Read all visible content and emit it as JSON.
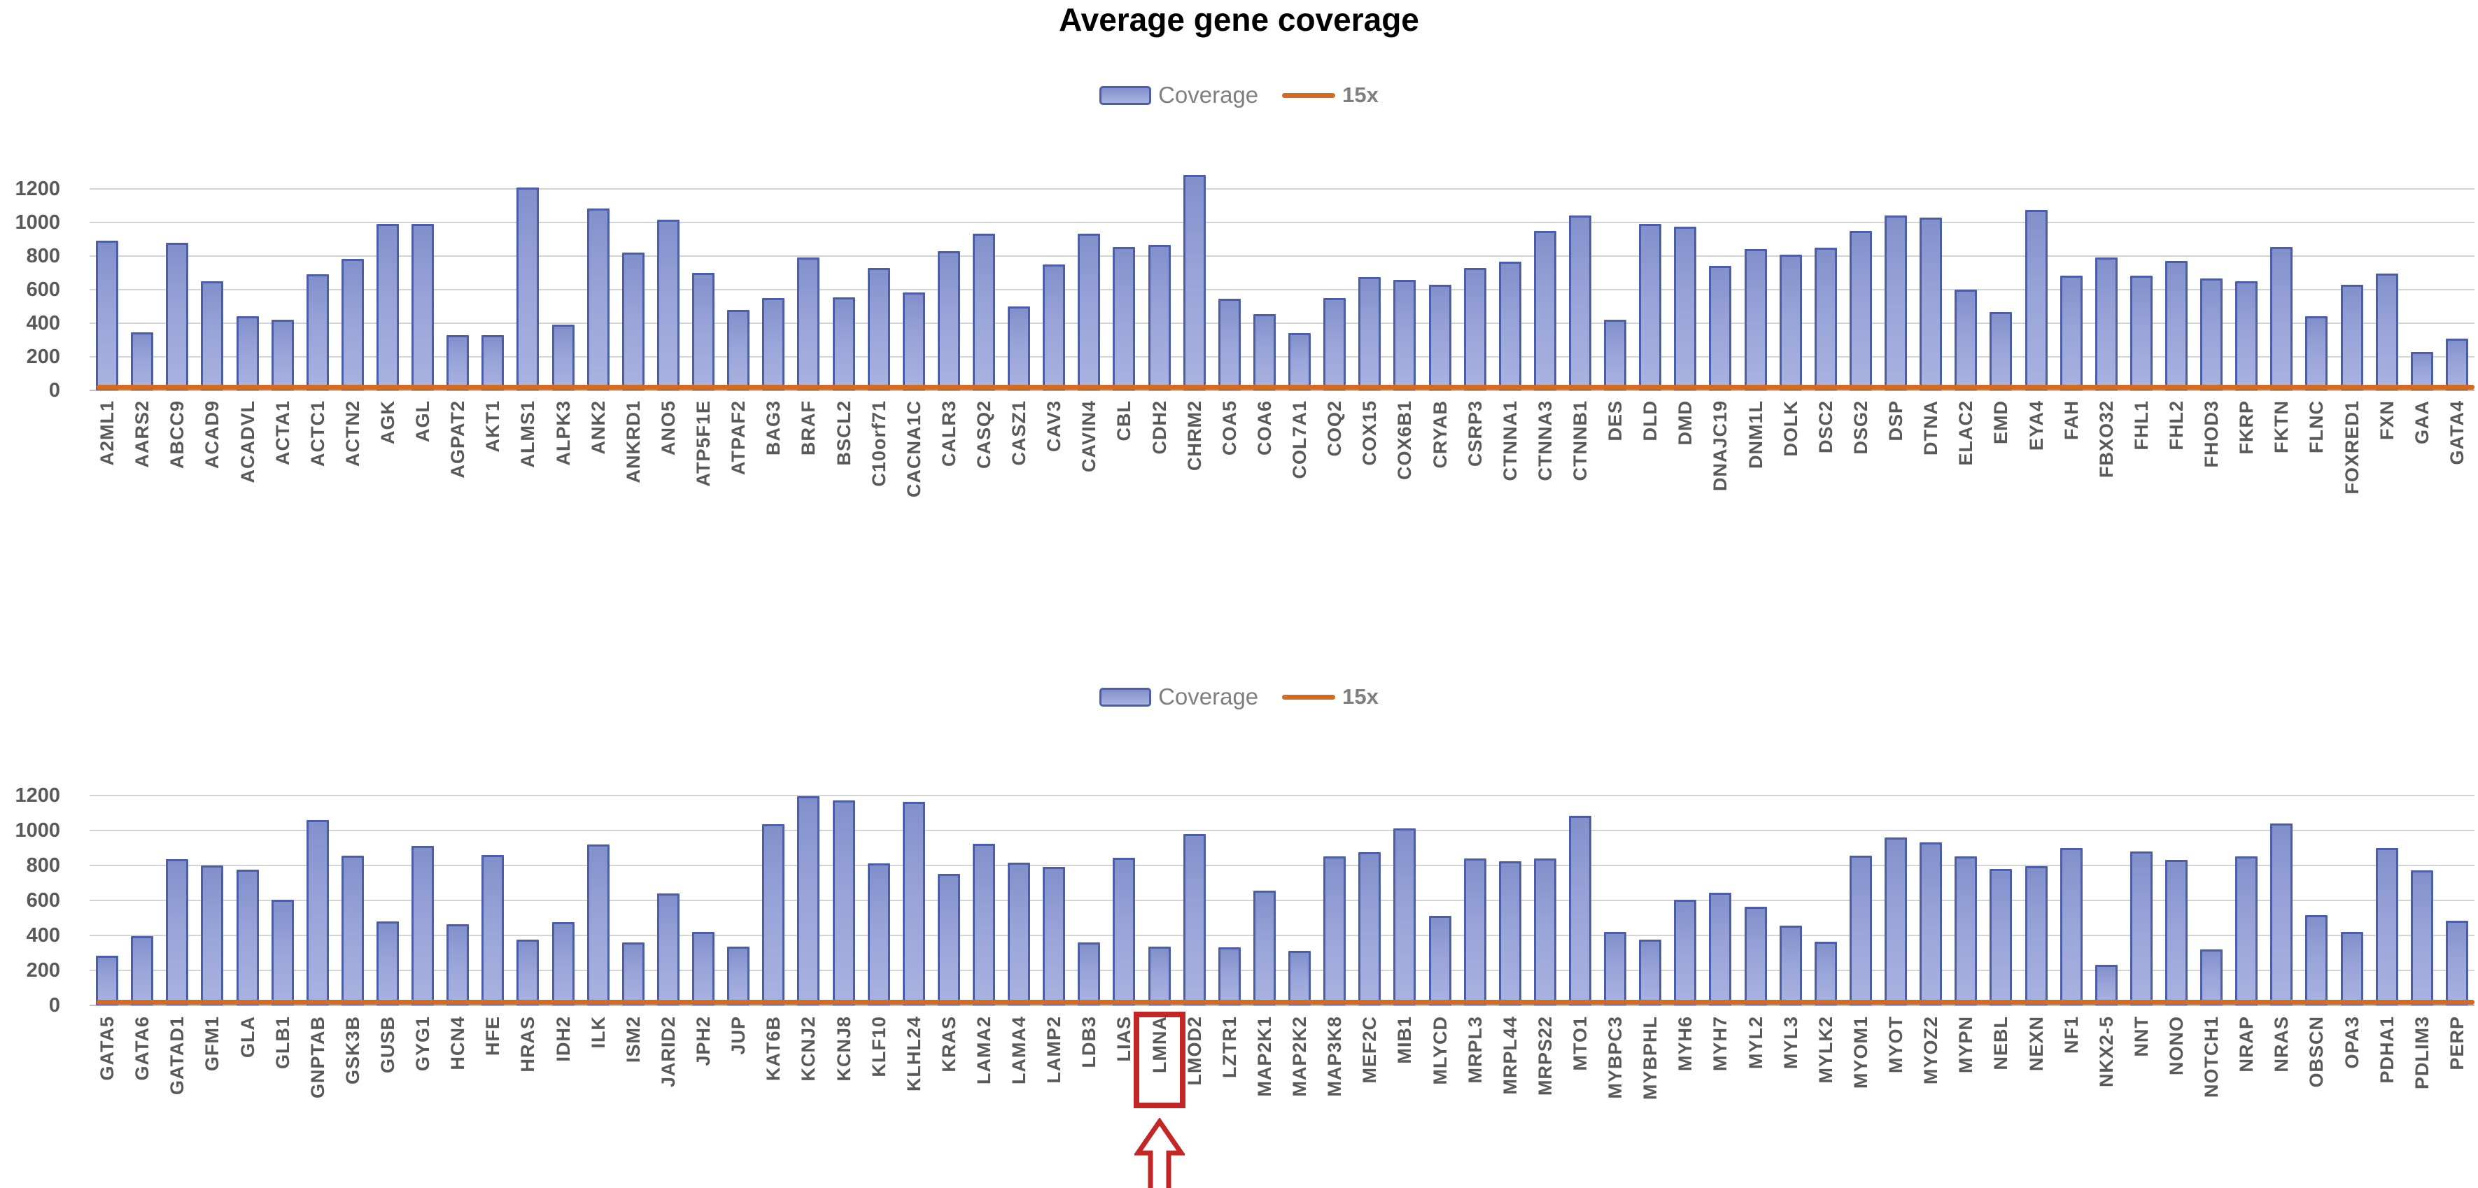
{
  "title": "Average gene coverage",
  "legend": {
    "coverage_label": "Coverage",
    "threshold_label": "15x"
  },
  "colors": {
    "bar_border": "#4C5EA8",
    "bar_fill_top": "#8290CB",
    "bar_fill_mid": "#98A3D8",
    "bar_fill_bottom": "#A9B3E1",
    "threshold": "#D26B24",
    "gridline": "#D4D4D4",
    "axis_text": "#595959",
    "legend_text": "#7F7F7F",
    "highlight": "#C32626",
    "title": "#000000",
    "background": "#FFFFFF"
  },
  "highlight": {
    "gene": "LMNA",
    "marker": "red box around x-axis label with red upward arrow below"
  },
  "chart_data": [
    {
      "type": "bar",
      "title": "Average gene coverage",
      "legend_entries": [
        "Coverage",
        "15x"
      ],
      "legend_position": "top-center",
      "grid": true,
      "ylim": [
        0,
        1200
      ],
      "y_ticks": [
        0,
        200,
        400,
        600,
        800,
        1000,
        1200
      ],
      "threshold_line": {
        "name": "15x",
        "value": 15
      },
      "categories": [
        "A2ML1",
        "AARS2",
        "ABCC9",
        "ACAD9",
        "ACADVL",
        "ACTA1",
        "ACTC1",
        "ACTN2",
        "AGK",
        "AGL",
        "AGPAT2",
        "AKT1",
        "ALMS1",
        "ALPK3",
        "ANK2",
        "ANKRD1",
        "ANO5",
        "ATP5F1E",
        "ATPAF2",
        "BAG3",
        "BRAF",
        "BSCL2",
        "C10orf71",
        "CACNA1C",
        "CALR3",
        "CASQ2",
        "CASZ1",
        "CAV3",
        "CAVIN4",
        "CBL",
        "CDH2",
        "CHRM2",
        "COA5",
        "COA6",
        "COL7A1",
        "COQ2",
        "COX15",
        "COX6B1",
        "CRYAB",
        "CSRP3",
        "CTNNA1",
        "CTNNA3",
        "CTNNB1",
        "DES",
        "DLD",
        "DMD",
        "DNAJC19",
        "DNM1L",
        "DOLK",
        "DSC2",
        "DSG2",
        "DSP",
        "DTNA",
        "ELAC2",
        "EMD",
        "EYA4",
        "FAH",
        "FBXO32",
        "FHL1",
        "FHL2",
        "FHOD3",
        "FKRP",
        "FKTN",
        "FLNC",
        "FOXRED1",
        "FXN",
        "GAA",
        "GATA4"
      ],
      "series": [
        {
          "name": "Coverage",
          "values": [
            890,
            345,
            880,
            650,
            440,
            420,
            690,
            785,
            990,
            990,
            330,
            330,
            1210,
            390,
            1085,
            820,
            1015,
            700,
            480,
            550,
            790,
            555,
            730,
            585,
            830,
            935,
            500,
            750,
            935,
            855,
            865,
            1285,
            545,
            455,
            340,
            550,
            675,
            660,
            630,
            730,
            765,
            950,
            1040,
            420,
            990,
            975,
            740,
            840,
            810,
            850,
            950,
            1040,
            1030,
            600,
            465,
            1075,
            685,
            790,
            685,
            770,
            665,
            650,
            855,
            440,
            630,
            695,
            230,
            310
          ]
        }
      ]
    },
    {
      "type": "bar",
      "title": "",
      "legend_entries": [
        "Coverage",
        "15x"
      ],
      "legend_position": "top-center",
      "grid": true,
      "ylim": [
        0,
        1200
      ],
      "y_ticks": [
        0,
        200,
        400,
        600,
        800,
        1000,
        1200
      ],
      "threshold_line": {
        "name": "15x",
        "value": 15
      },
      "highlight_category": "LMNA",
      "categories": [
        "GATA5",
        "GATA6",
        "GATAD1",
        "GFM1",
        "GLA",
        "GLB1",
        "GNPTAB",
        "GSK3B",
        "GUSB",
        "GYG1",
        "HCN4",
        "HFE",
        "HRAS",
        "IDH2",
        "ILK",
        "ISM2",
        "JARID2",
        "JPH2",
        "JUP",
        "KAT6B",
        "KCNJ2",
        "KCNJ8",
        "KLF10",
        "KLHL24",
        "KRAS",
        "LAMA2",
        "LAMA4",
        "LAMP2",
        "LDB3",
        "LIAS",
        "LMNA",
        "LMOD2",
        "LZTR1",
        "MAP2K1",
        "MAP2K2",
        "MAP3K8",
        "MEF2C",
        "MIB1",
        "MLYCD",
        "MRPL3",
        "MRPL44",
        "MRPS22",
        "MTO1",
        "MYBPC3",
        "MYBPHL",
        "MYH6",
        "MYH7",
        "MYL2",
        "MYL3",
        "MYLK2",
        "MYOM1",
        "MYOT",
        "MYOZ2",
        "MYPN",
        "NEBL",
        "NEXN",
        "NF1",
        "NKX2-5",
        "NNT",
        "NONO",
        "NOTCH1",
        "NRAP",
        "NRAS",
        "OBSCN",
        "OPA3",
        "PDHA1",
        "PDLIM3",
        "PERP"
      ],
      "series": [
        {
          "name": "Coverage",
          "values": [
            285,
            395,
            835,
            800,
            775,
            605,
            1060,
            855,
            480,
            910,
            465,
            860,
            375,
            475,
            920,
            360,
            640,
            420,
            335,
            1035,
            1195,
            1170,
            810,
            1165,
            750,
            925,
            815,
            790,
            360,
            845,
            335,
            980,
            330,
            655,
            310,
            850,
            875,
            1010,
            510,
            840,
            825,
            840,
            1085,
            420,
            375,
            605,
            645,
            565,
            455,
            365,
            855,
            960,
            930,
            850,
            780,
            795,
            900,
            230,
            880,
            830,
            320,
            850,
            1040,
            515,
            420,
            900,
            770,
            485
          ]
        }
      ]
    }
  ]
}
